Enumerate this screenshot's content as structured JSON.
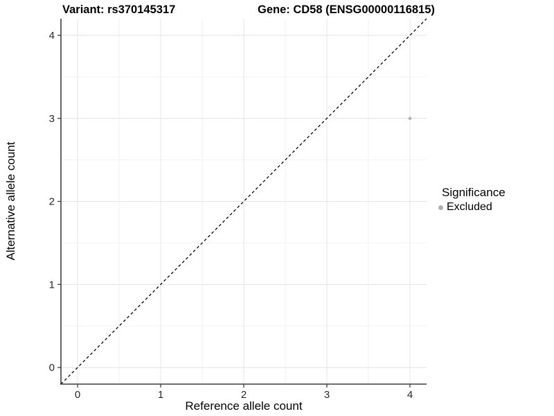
{
  "chart_data": {
    "type": "scatter",
    "title_variant": "Variant: rs370145317",
    "title_gene": "Gene: CD58 (ENSG00000116815)",
    "xlabel": "Reference allele count",
    "ylabel": "Alternative allele count",
    "xlim": [
      -0.2,
      4.2
    ],
    "ylim": [
      -0.2,
      4.2
    ],
    "xticks": [
      0,
      1,
      2,
      3,
      4
    ],
    "yticks": [
      0,
      1,
      2,
      3,
      4
    ],
    "grid": {
      "major": true,
      "minor": true
    },
    "points": [
      {
        "x": 4,
        "y": 3,
        "significance": "Excluded"
      }
    ],
    "abline": {
      "intercept": 0,
      "slope": 1,
      "style": "dashed"
    },
    "legend": {
      "title": "Significance",
      "position": "right",
      "items": [
        {
          "label": "Excluded",
          "color": "#b0b0b0"
        }
      ]
    },
    "colors": {
      "point": "#b0b0b0",
      "grid_major": "#e6e6e6",
      "grid_minor": "#f2f2f2",
      "axis_line": "#3d3d3d",
      "tick_mark": "#333333",
      "tick_text": "#262626",
      "abline": "#000000",
      "background": "#ffffff"
    }
  }
}
